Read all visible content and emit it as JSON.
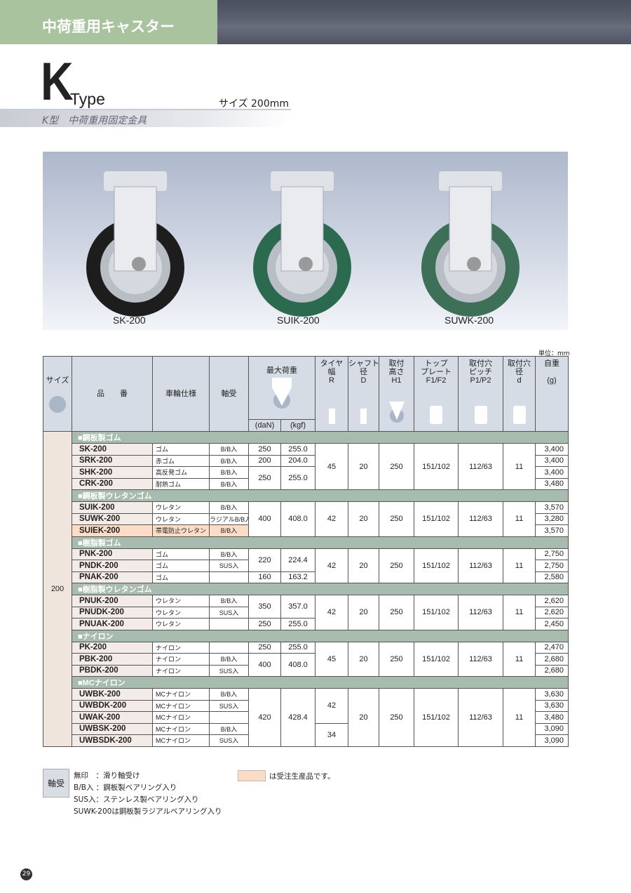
{
  "header": {
    "category": "中荷重用キャスター"
  },
  "title": {
    "letter": "K",
    "type": "Type",
    "size": "サイズ 200mm",
    "subtitle": "K型　中荷重用固定金具"
  },
  "photos": [
    {
      "label": "SK-200",
      "tire": "#1d1d1d"
    },
    {
      "label": "SUIK-200",
      "tire": "#2b6a4f"
    },
    {
      "label": "SUWK-200",
      "tire": "#3e6f57"
    }
  ],
  "unit": "単位：mm",
  "table": {
    "headers": {
      "size": "サイズ",
      "part": "品　　番",
      "wheel": "車輪仕様",
      "bearing": "軸受",
      "load": "最大荷重",
      "dan": "(daN)",
      "kgf": "(kgf)",
      "r": "タイヤ\n幅\nR",
      "d_shaft": "シャフト\n径\nD",
      "h1": "取付\n高さ\nH1",
      "f": "トップ\nプレート\nF1/F2",
      "p": "取付穴\nピッチ\nP1/P2",
      "d_hole": "取付穴\n径\nd",
      "weight": "自重\n\n(g)"
    },
    "size_value": "200",
    "groups": [
      {
        "title": "■鋼板製ゴム",
        "rows": [
          {
            "part": "SK-200",
            "wheel": "ゴム",
            "bearing": "B/B入",
            "weight": "3,400"
          },
          {
            "part": "SRK-200",
            "wheel": "赤ゴム",
            "bearing": "B/B入",
            "weight": "3,400"
          },
          {
            "part": "SHK-200",
            "wheel": "高反発ゴム",
            "bearing": "B/B入",
            "weight": "3,400"
          },
          {
            "part": "CRK-200",
            "wheel": "耐熱ゴム",
            "bearing": "B/B入",
            "weight": "3,480"
          }
        ],
        "load": [
          {
            "dan": "250",
            "kgf": "255.0",
            "rows": 1
          },
          {
            "dan": "200",
            "kgf": "204.0",
            "rows": 1
          },
          {
            "dan": "250",
            "kgf": "255.0",
            "rows": 2
          }
        ],
        "r": [
          {
            "v": "45",
            "rows": 4
          }
        ],
        "d_shaft": "20",
        "h1": "250",
        "f": "151/102",
        "p": "112/63",
        "d_hole": "11"
      },
      {
        "title": "■鋼板製ウレタンゴム",
        "rows": [
          {
            "part": "SUIK-200",
            "wheel": "ウレタン",
            "bearing": "B/B入",
            "weight": "3,570"
          },
          {
            "part": "SUWK-200",
            "wheel": "ウレタン",
            "bearing": "ラジアルB/B入",
            "weight": "3,280"
          },
          {
            "part": "SUIEK-200",
            "wheel": "帯電防止ウレタン",
            "bearing": "B/B入",
            "weight": "3,570",
            "made_to_order": true
          }
        ],
        "load": [
          {
            "dan": "400",
            "kgf": "408.0",
            "rows": 3
          }
        ],
        "r": [
          {
            "v": "42",
            "rows": 3
          }
        ],
        "d_shaft": "20",
        "h1": "250",
        "f": "151/102",
        "p": "112/63",
        "d_hole": "11"
      },
      {
        "title": "■樹脂製ゴム",
        "rows": [
          {
            "part": "PNK-200",
            "wheel": "ゴム",
            "bearing": "B/B入",
            "weight": "2,750"
          },
          {
            "part": "PNDK-200",
            "wheel": "ゴム",
            "bearing": "SUS入",
            "weight": "2,750"
          },
          {
            "part": "PNAK-200",
            "wheel": "ゴム",
            "bearing": "",
            "weight": "2,580"
          }
        ],
        "load": [
          {
            "dan": "220",
            "kgf": "224.4",
            "rows": 2
          },
          {
            "dan": "160",
            "kgf": "163.2",
            "rows": 1
          }
        ],
        "r": [
          {
            "v": "42",
            "rows": 3
          }
        ],
        "d_shaft": "20",
        "h1": "250",
        "f": "151/102",
        "p": "112/63",
        "d_hole": "11"
      },
      {
        "title": "■樹脂製ウレタンゴム",
        "rows": [
          {
            "part": "PNUK-200",
            "wheel": "ウレタン",
            "bearing": "B/B入",
            "weight": "2,620"
          },
          {
            "part": "PNUDK-200",
            "wheel": "ウレタン",
            "bearing": "SUS入",
            "weight": "2,620"
          },
          {
            "part": "PNUAK-200",
            "wheel": "ウレタン",
            "bearing": "",
            "weight": "2,450"
          }
        ],
        "load": [
          {
            "dan": "350",
            "kgf": "357.0",
            "rows": 2
          },
          {
            "dan": "250",
            "kgf": "255.0",
            "rows": 1
          }
        ],
        "r": [
          {
            "v": "42",
            "rows": 3
          }
        ],
        "d_shaft": "20",
        "h1": "250",
        "f": "151/102",
        "p": "112/63",
        "d_hole": "11"
      },
      {
        "title": "■ナイロン",
        "rows": [
          {
            "part": "PK-200",
            "wheel": "ナイロン",
            "bearing": "",
            "weight": "2,470"
          },
          {
            "part": "PBK-200",
            "wheel": "ナイロン",
            "bearing": "B/B入",
            "weight": "2,680"
          },
          {
            "part": "PBDK-200",
            "wheel": "ナイロン",
            "bearing": "SUS入",
            "weight": "2,680"
          }
        ],
        "load": [
          {
            "dan": "250",
            "kgf": "255.0",
            "rows": 1
          },
          {
            "dan": "400",
            "kgf": "408.0",
            "rows": 2
          }
        ],
        "r": [
          {
            "v": "45",
            "rows": 3
          }
        ],
        "d_shaft": "20",
        "h1": "250",
        "f": "151/102",
        "p": "112/63",
        "d_hole": "11"
      },
      {
        "title": "■MCナイロン",
        "rows": [
          {
            "part": "UWBK-200",
            "wheel": "MCナイロン",
            "bearing": "B/B入",
            "weight": "3,630"
          },
          {
            "part": "UWBDK-200",
            "wheel": "MCナイロン",
            "bearing": "SUS入",
            "weight": "3,630"
          },
          {
            "part": "UWAK-200",
            "wheel": "MCナイロン",
            "bearing": "",
            "weight": "3,480"
          },
          {
            "part": "UWBSK-200",
            "wheel": "MCナイロン",
            "bearing": "B/B入",
            "weight": "3,090"
          },
          {
            "part": "UWBSDK-200",
            "wheel": "MCナイロン",
            "bearing": "SUS入",
            "weight": "3,090"
          }
        ],
        "load": [
          {
            "dan": "420",
            "kgf": "428.4",
            "rows": 5
          }
        ],
        "r": [
          {
            "v": "42",
            "rows": 3
          },
          {
            "v": "34",
            "rows": 2
          }
        ],
        "d_shaft": "20",
        "h1": "250",
        "f": "151/102",
        "p": "112/63",
        "d_hole": "11"
      }
    ]
  },
  "legend": {
    "box": "軸受",
    "lines": [
      "無印　：滑り軸受け",
      "B/B入 ：鋼板製ベアリング入り",
      "SUS入：ステンレス製ベアリング入り",
      "SUWK-200は鋼板製ラジアルベアリング入り"
    ],
    "made_to_order": "は受注生産品です。",
    "mto_color": "#fbdcc6"
  },
  "page_number": "29"
}
